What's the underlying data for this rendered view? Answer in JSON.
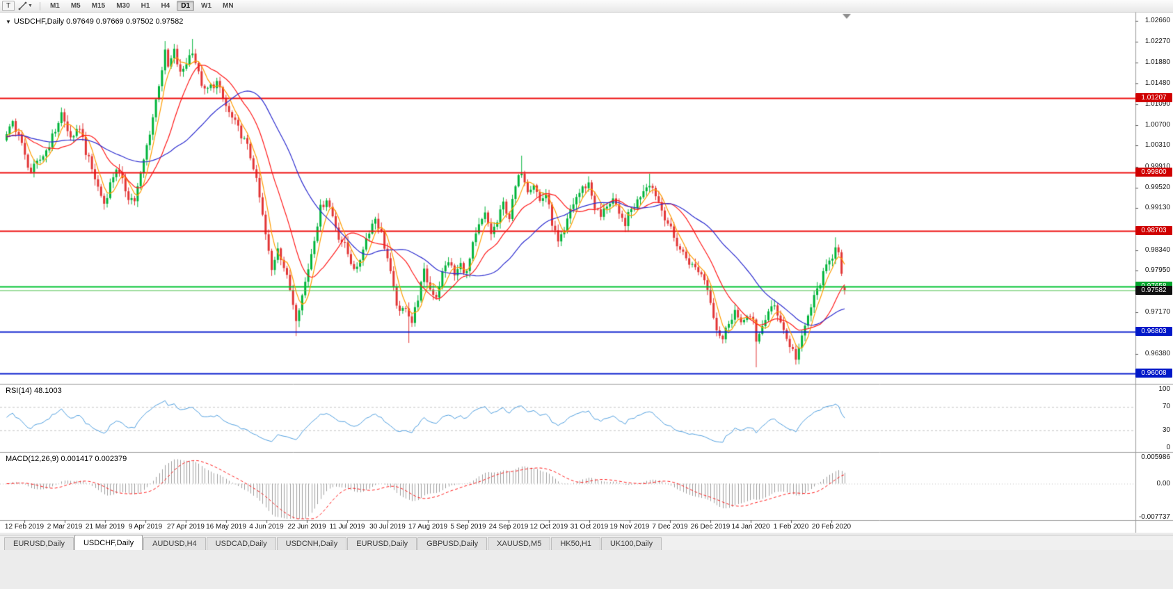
{
  "toolbar": {
    "t_button_label": "T",
    "timeframes": [
      "M1",
      "M5",
      "M15",
      "M30",
      "H1",
      "H4",
      "D1",
      "W1",
      "MN"
    ],
    "active_timeframe": "D1"
  },
  "chart": {
    "title_line": "USDCHF,Daily 0.97649 0.97669 0.97502 0.97582",
    "symbol": "USDCHF",
    "period": "Daily"
  },
  "indicators": {
    "rsi_label": "RSI(14) 48.1003",
    "macd_label": "MACD(12,26,9) 0.001417 0.002379"
  },
  "tabs": {
    "active_index": 1,
    "items": [
      "EURUSD,Daily",
      "USDCHF,Daily",
      "AUDUSD,H4",
      "USDCAD,Daily",
      "USDCNH,Daily",
      "EURUSD,Daily",
      "GBPUSD,Daily",
      "XAUUSD,M5",
      "HK50,H1",
      "UK100,Daily"
    ]
  },
  "chart_data": {
    "type": "candlestick",
    "title": "USDCHF,Daily",
    "last_ohlc": {
      "open": 0.97649,
      "high": 0.97669,
      "low": 0.97502,
      "close": 0.97582
    },
    "bars_total": 276,
    "price_max": 1.0274,
    "price_min": 0.9587,
    "candle_up_color": "#00b43a",
    "candle_down_color": "#e23535",
    "y_axis_ticks": [
      "1.02660",
      "1.02270",
      "1.01880",
      "1.01480",
      "1.01090",
      "1.00700",
      "1.00310",
      "0.99910",
      "0.99520",
      "0.99130",
      "0.98730",
      "0.98340",
      "0.97950",
      "0.97560",
      "0.97170",
      "0.96780",
      "0.96380",
      "0.95990"
    ],
    "x_labels": [
      "12 Feb 2019",
      "2 Mar 2019",
      "21 Mar 2019",
      "9 Apr 2019",
      "27 Apr 2019",
      "16 May 2019",
      "4 Jun 2019",
      "22 Jun 2019",
      "11 Jul 2019",
      "30 Jul 2019",
      "17 Aug 2019",
      "5 Sep 2019",
      "24 Sep 2019",
      "12 Oct 2019",
      "31 Oct 2019",
      "19 Nov 2019",
      "7 Dec 2019",
      "26 Dec 2019",
      "14 Jan 2020",
      "1 Feb 2020",
      "20 Feb 2020"
    ],
    "horizontal_lines": [
      {
        "price": 1.01207,
        "label": "1.01207",
        "color": "#ee1111",
        "label_bg": "#d00000"
      },
      {
        "price": 0.998,
        "label": "0.99800",
        "color": "#ee1111",
        "label_bg": "#d00000"
      },
      {
        "price": 0.98703,
        "label": "0.98703",
        "color": "#ee1111",
        "label_bg": "#d00000"
      },
      {
        "price": 0.97658,
        "label": "0.97658",
        "color": "#00c432",
        "label_bg": "#00a52c"
      },
      {
        "price": 0.96803,
        "label": "0.96803",
        "color": "#0a1ecd",
        "label_bg": "#0018c8"
      },
      {
        "price": 0.96008,
        "label": "0.96008",
        "color": "#0a1ecd",
        "label_bg": "#0018c8"
      }
    ],
    "current_price": {
      "value": 0.97582,
      "label": "0.97582",
      "label_bg": "#101010",
      "line_color": "#4fc24f"
    },
    "moving_averages": [
      {
        "name": "fast",
        "period": 5,
        "color": "#ff9d00"
      },
      {
        "name": "medium",
        "period": 15,
        "color": "#ff1a1a"
      },
      {
        "name": "slow",
        "period": 34,
        "color": "#2d2dd0"
      }
    ],
    "rsi": {
      "period": 14,
      "current": 48.1003,
      "levels": [
        70,
        30
      ],
      "range": [
        0,
        100
      ],
      "axis_labels": [
        "100",
        "70",
        "30",
        "0"
      ],
      "color": "#4f9fe0"
    },
    "macd": {
      "fast": 12,
      "slow": 26,
      "signal": 9,
      "values": [
        0.001417,
        0.002379
      ],
      "axis_max": 0.005986,
      "axis_min": -0.007737,
      "axis_labels": [
        "0.005986",
        "0.00",
        "-0.007737"
      ],
      "histogram_color": "#a0a0a0",
      "signal_color": "#ff1a1a"
    },
    "price_path": [
      [
        0,
        1.0048
      ],
      [
        2,
        1.0075
      ],
      [
        4,
        1.0052
      ],
      [
        6,
        1.001
      ],
      [
        8,
        0.9982
      ],
      [
        10,
        0.9996
      ],
      [
        13,
        1.0022
      ],
      [
        16,
        1.006
      ],
      [
        18,
        1.0092
      ],
      [
        20,
        1.0058
      ],
      [
        22,
        1.0042
      ],
      [
        24,
        1.0068
      ],
      [
        26,
        1.002
      ],
      [
        28,
        0.9986
      ],
      [
        30,
        0.9952
      ],
      [
        32,
        0.9922
      ],
      [
        34,
        0.9958
      ],
      [
        36,
        0.999
      ],
      [
        38,
        0.9962
      ],
      [
        40,
        0.9935
      ],
      [
        42,
        0.9928
      ],
      [
        44,
        0.9975
      ],
      [
        46,
        1.003
      ],
      [
        48,
        1.0085
      ],
      [
        50,
        1.0148
      ],
      [
        52,
        1.0205
      ],
      [
        53,
        1.0178
      ],
      [
        55,
        1.0208
      ],
      [
        57,
        1.0165
      ],
      [
        59,
        1.0188
      ],
      [
        61,
        1.0212
      ],
      [
        63,
        1.0165
      ],
      [
        65,
        1.0132
      ],
      [
        67,
        1.0142
      ],
      [
        69,
        1.015
      ],
      [
        71,
        1.0118
      ],
      [
        73,
        1.0092
      ],
      [
        75,
        1.0072
      ],
      [
        77,
        1.0052
      ],
      [
        79,
        1.0028
      ],
      [
        81,
        0.9992
      ],
      [
        83,
        0.9932
      ],
      [
        85,
        0.9862
      ],
      [
        87,
        0.9795
      ],
      [
        89,
        0.9842
      ],
      [
        91,
        0.9802
      ],
      [
        93,
        0.976
      ],
      [
        95,
        0.9708
      ],
      [
        97,
        0.9748
      ],
      [
        99,
        0.98
      ],
      [
        101,
        0.9858
      ],
      [
        103,
        0.9912
      ],
      [
        105,
        0.9932
      ],
      [
        107,
        0.9898
      ],
      [
        109,
        0.986
      ],
      [
        111,
        0.9842
      ],
      [
        113,
        0.9812
      ],
      [
        115,
        0.9795
      ],
      [
        117,
        0.984
      ],
      [
        119,
        0.9872
      ],
      [
        121,
        0.9895
      ],
      [
        123,
        0.9865
      ],
      [
        125,
        0.9818
      ],
      [
        127,
        0.9758
      ],
      [
        129,
        0.9712
      ],
      [
        131,
        0.973
      ],
      [
        133,
        0.9698
      ],
      [
        135,
        0.9745
      ],
      [
        137,
        0.9792
      ],
      [
        139,
        0.976
      ],
      [
        141,
        0.9748
      ],
      [
        143,
        0.979
      ],
      [
        145,
        0.9815
      ],
      [
        147,
        0.9786
      ],
      [
        149,
        0.9806
      ],
      [
        151,
        0.979
      ],
      [
        153,
        0.9842
      ],
      [
        155,
        0.9878
      ],
      [
        157,
        0.99
      ],
      [
        159,
        0.9866
      ],
      [
        161,
        0.9886
      ],
      [
        163,
        0.9922
      ],
      [
        165,
        0.9896
      ],
      [
        167,
        0.9952
      ],
      [
        169,
        0.9985
      ],
      [
        171,
        0.995
      ],
      [
        173,
        0.996
      ],
      [
        175,
        0.9926
      ],
      [
        177,
        0.994
      ],
      [
        179,
        0.9886
      ],
      [
        181,
        0.9846
      ],
      [
        183,
        0.9866
      ],
      [
        185,
        0.991
      ],
      [
        187,
        0.9934
      ],
      [
        189,
        0.995
      ],
      [
        191,
        0.996
      ],
      [
        193,
        0.9916
      ],
      [
        195,
        0.9896
      ],
      [
        197,
        0.992
      ],
      [
        199,
        0.993
      ],
      [
        201,
        0.9896
      ],
      [
        203,
        0.9886
      ],
      [
        205,
        0.991
      ],
      [
        207,
        0.9926
      ],
      [
        209,
        0.995
      ],
      [
        211,
        0.9962
      ],
      [
        213,
        0.994
      ],
      [
        215,
        0.991
      ],
      [
        217,
        0.9886
      ],
      [
        219,
        0.9856
      ],
      [
        221,
        0.9836
      ],
      [
        223,
        0.982
      ],
      [
        225,
        0.9804
      ],
      [
        227,
        0.9796
      ],
      [
        229,
        0.978
      ],
      [
        231,
        0.974
      ],
      [
        233,
        0.9686
      ],
      [
        235,
        0.9666
      ],
      [
        237,
        0.97
      ],
      [
        239,
        0.972
      ],
      [
        241,
        0.969
      ],
      [
        243,
        0.9716
      ],
      [
        245,
        0.9698
      ],
      [
        246,
        0.9655
      ],
      [
        248,
        0.9694
      ],
      [
        250,
        0.9716
      ],
      [
        252,
        0.9728
      ],
      [
        254,
        0.9702
      ],
      [
        256,
        0.9666
      ],
      [
        258,
        0.9644
      ],
      [
        259,
        0.9632
      ],
      [
        261,
        0.9666
      ],
      [
        263,
        0.971
      ],
      [
        265,
        0.9744
      ],
      [
        267,
        0.9774
      ],
      [
        269,
        0.98
      ],
      [
        271,
        0.9824
      ],
      [
        272,
        0.9844
      ],
      [
        273,
        0.9836
      ],
      [
        274,
        0.9786
      ],
      [
        275,
        0.97582
      ]
    ],
    "spike_highs": [
      [
        18,
        1.0102
      ],
      [
        52,
        1.0228
      ],
      [
        61,
        1.0232
      ],
      [
        169,
        1.0012
      ],
      [
        211,
        0.9978
      ],
      [
        272,
        0.9858
      ]
    ],
    "spike_lows": [
      [
        95,
        0.9672
      ],
      [
        132,
        0.9659
      ],
      [
        246,
        0.9613
      ],
      [
        259,
        0.9618
      ]
    ]
  }
}
